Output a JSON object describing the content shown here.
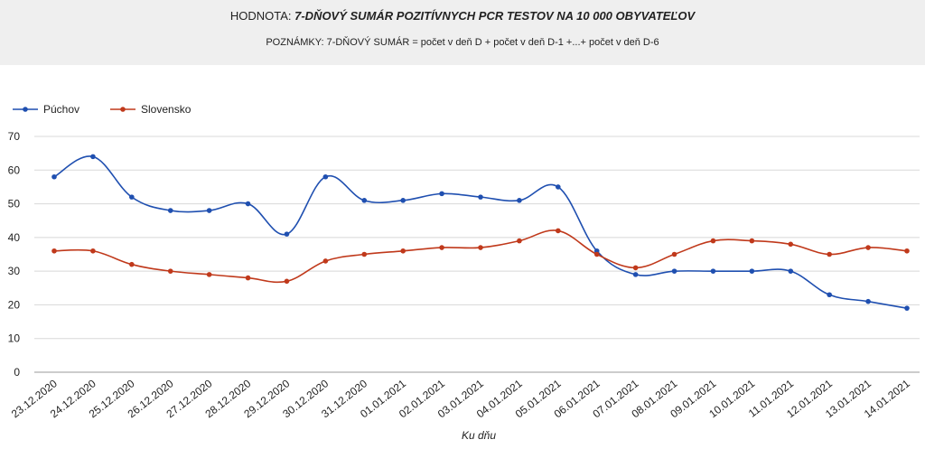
{
  "header": {
    "title_prefix": "HODNOTA:",
    "title_main": "7-DŇOVÝ SUMÁR POZITÍVNYCH PCR TESTOV NA 10 000 OBYVATEĽOV",
    "note": "POZNÁMKY: 7-DŇOVÝ SUMÁR = počet v deň D + počet v deň D-1 +...+ počet v deň D-6"
  },
  "chart_data": {
    "type": "line",
    "title": "",
    "xlabel": "Ku dňu",
    "ylabel": "",
    "ylim": [
      0,
      70
    ],
    "yticks": [
      0,
      10,
      20,
      30,
      40,
      50,
      60,
      70
    ],
    "grid": true,
    "legend_position": "top-left",
    "categories": [
      "23.12.2020",
      "24.12.2020",
      "25.12.2020",
      "26.12.2020",
      "27.12.2020",
      "28.12.2020",
      "29.12.2020",
      "30.12.2020",
      "31.12.2020",
      "01.01.2021",
      "02.01.2021",
      "03.01.2021",
      "04.01.2021",
      "05.01.2021",
      "06.01.2021",
      "07.01.2021",
      "08.01.2021",
      "09.01.2021",
      "10.01.2021",
      "11.01.2021",
      "12.01.2021",
      "13.01.2021",
      "14.01.2021"
    ],
    "series": [
      {
        "name": "Púchov",
        "color": "#1f4fb0",
        "values": [
          58,
          64,
          52,
          48,
          48,
          50,
          41,
          58,
          51,
          51,
          53,
          52,
          51,
          55,
          36,
          29,
          30,
          30,
          30,
          30,
          23,
          21,
          19
        ]
      },
      {
        "name": "Slovensko",
        "color": "#c0391b",
        "values": [
          36,
          36,
          32,
          30,
          29,
          28,
          27,
          33,
          35,
          36,
          37,
          37,
          39,
          42,
          35,
          31,
          35,
          39,
          39,
          38,
          35,
          37,
          36
        ]
      }
    ]
  }
}
